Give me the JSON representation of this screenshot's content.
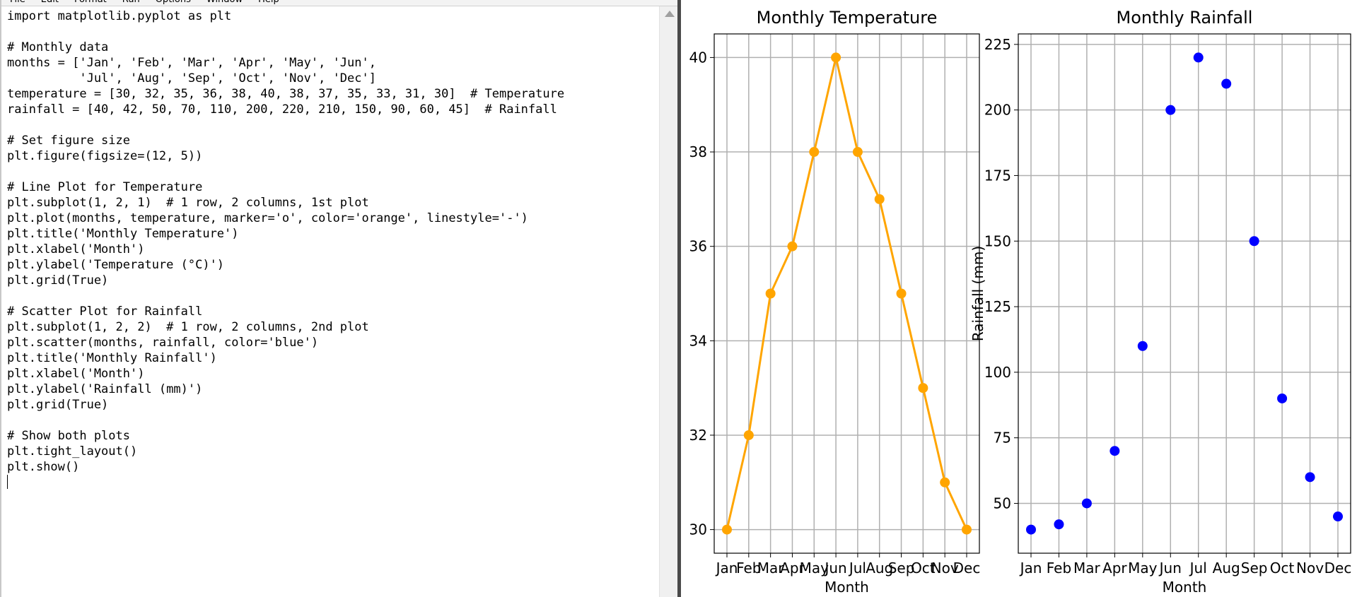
{
  "editor": {
    "menu": [
      "File",
      "Edit",
      "Format",
      "Run",
      "Options",
      "Window",
      "Help"
    ],
    "lines": [
      "import matplotlib.pyplot as plt",
      "",
      "# Monthly data",
      "months = ['Jan', 'Feb', 'Mar', 'Apr', 'May', 'Jun',",
      "          'Jul', 'Aug', 'Sep', 'Oct', 'Nov', 'Dec']",
      "temperature = [30, 32, 35, 36, 38, 40, 38, 37, 35, 33, 31, 30]  # Temperature",
      "rainfall = [40, 42, 50, 70, 110, 200, 220, 210, 150, 90, 60, 45]  # Rainfall",
      "",
      "# Set figure size",
      "plt.figure(figsize=(12, 5))",
      "",
      "# Line Plot for Temperature",
      "plt.subplot(1, 2, 1)  # 1 row, 2 columns, 1st plot",
      "plt.plot(months, temperature, marker='o', color='orange', linestyle='-')",
      "plt.title('Monthly Temperature')",
      "plt.xlabel('Month')",
      "plt.ylabel('Temperature (°C)')",
      "plt.grid(True)",
      "",
      "# Scatter Plot for Rainfall",
      "plt.subplot(1, 2, 2)  # 1 row, 2 columns, 2nd plot",
      "plt.scatter(months, rainfall, color='blue')",
      "plt.title('Monthly Rainfall')",
      "plt.xlabel('Month')",
      "plt.ylabel('Rainfall (mm)')",
      "plt.grid(True)",
      "",
      "# Show both plots",
      "plt.tight_layout()",
      "plt.show()"
    ]
  },
  "colors": {
    "temperature_series": "#ffa500",
    "rainfall_series": "#0000ff",
    "grid": "#b0b0b0"
  },
  "chart_data": [
    {
      "type": "line",
      "title": "Monthly Temperature",
      "xlabel": "Month",
      "ylabel": "",
      "categories": [
        "Jan",
        "Feb",
        "Mar",
        "Apr",
        "May",
        "Jun",
        "Jul",
        "Aug",
        "Sep",
        "Oct",
        "Nov",
        "Dec"
      ],
      "values": [
        30,
        32,
        35,
        36,
        38,
        40,
        38,
        37,
        35,
        33,
        31,
        30
      ],
      "yticks": [
        30,
        32,
        34,
        36,
        38,
        40
      ],
      "ylim": [
        29.5,
        40.5
      ],
      "grid": true,
      "marker": "o"
    },
    {
      "type": "scatter",
      "title": "Monthly Rainfall",
      "xlabel": "Month",
      "ylabel": "Rainfall (mm)",
      "categories": [
        "Jan",
        "Feb",
        "Mar",
        "Apr",
        "May",
        "Jun",
        "Jul",
        "Aug",
        "Sep",
        "Oct",
        "Nov",
        "Dec"
      ],
      "values": [
        40,
        42,
        50,
        70,
        110,
        200,
        220,
        210,
        150,
        90,
        60,
        45
      ],
      "yticks": [
        50,
        75,
        100,
        125,
        150,
        175,
        200,
        225
      ],
      "ylim": [
        31,
        229
      ],
      "grid": true
    }
  ]
}
